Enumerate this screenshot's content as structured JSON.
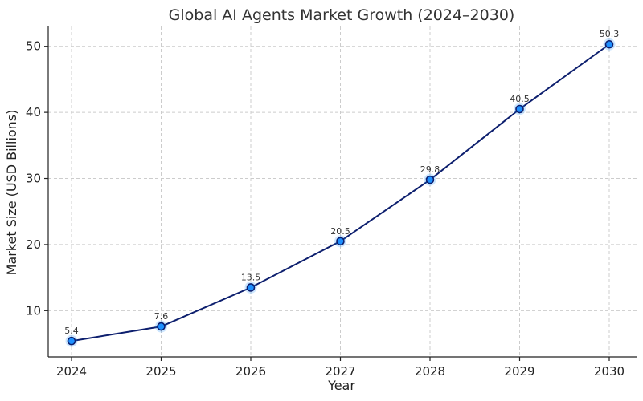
{
  "chart_data": {
    "type": "line",
    "title": "Global AI Agents Market Growth (2024–2030)",
    "xlabel": "Year",
    "ylabel": "Market Size (USD Billions)",
    "categories": [
      "2024",
      "2025",
      "2026",
      "2027",
      "2028",
      "2029",
      "2030"
    ],
    "series": [
      {
        "values": [
          5.4,
          7.6,
          13.5,
          20.5,
          29.8,
          40.5,
          50.3
        ],
        "labels": [
          "5.4",
          "7.6",
          "13.5",
          "20.5",
          "29.8",
          "40.5",
          "50.3"
        ]
      }
    ],
    "yticks": [
      10,
      20,
      30,
      40,
      50
    ],
    "ytick_labels": [
      "10",
      "20",
      "30",
      "40",
      "50"
    ],
    "ylim": [
      3,
      53
    ],
    "grid": true,
    "line_color": "#0d1f6e",
    "marker_fill": "#1e90ff",
    "marker_edge": "#0d1f6e"
  }
}
